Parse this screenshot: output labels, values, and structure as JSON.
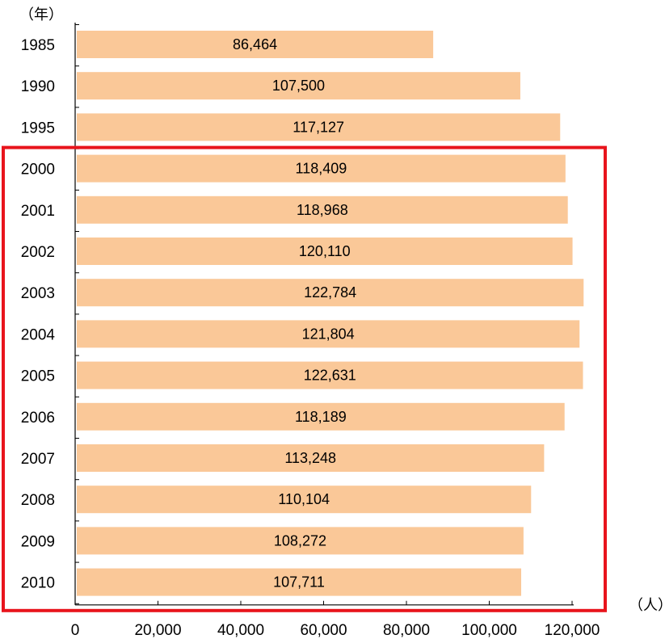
{
  "chart_data": {
    "type": "bar",
    "orientation": "horizontal",
    "title": "",
    "y_unit_label": "（年）",
    "x_unit_label": "（人）",
    "categories": [
      "1985",
      "1990",
      "1995",
      "2000",
      "2001",
      "2002",
      "2003",
      "2004",
      "2005",
      "2006",
      "2007",
      "2008",
      "2009",
      "2010"
    ],
    "values": [
      86464,
      107500,
      117127,
      118409,
      118968,
      120110,
      122784,
      121804,
      122631,
      118189,
      113248,
      110104,
      108272,
      107711
    ],
    "data_labels": [
      "86,464",
      "107,500",
      "117,127",
      "118,409",
      "118,968",
      "120,110",
      "122,784",
      "121,804",
      "122,631",
      "118,189",
      "113,248",
      "110,104",
      "108,272",
      "107,711"
    ],
    "xlim": [
      0,
      120000
    ],
    "x_ticks": [
      0,
      20000,
      40000,
      60000,
      80000,
      100000,
      120000
    ],
    "x_tick_labels": [
      "0",
      "20,000",
      "40,000",
      "60,000",
      "80,000",
      "100,000",
      "120,000"
    ],
    "bar_color": "#FAC898",
    "grid": false,
    "legend": "none",
    "highlight": {
      "categories": [
        "2000",
        "2010"
      ],
      "color": "#E8141C"
    }
  }
}
